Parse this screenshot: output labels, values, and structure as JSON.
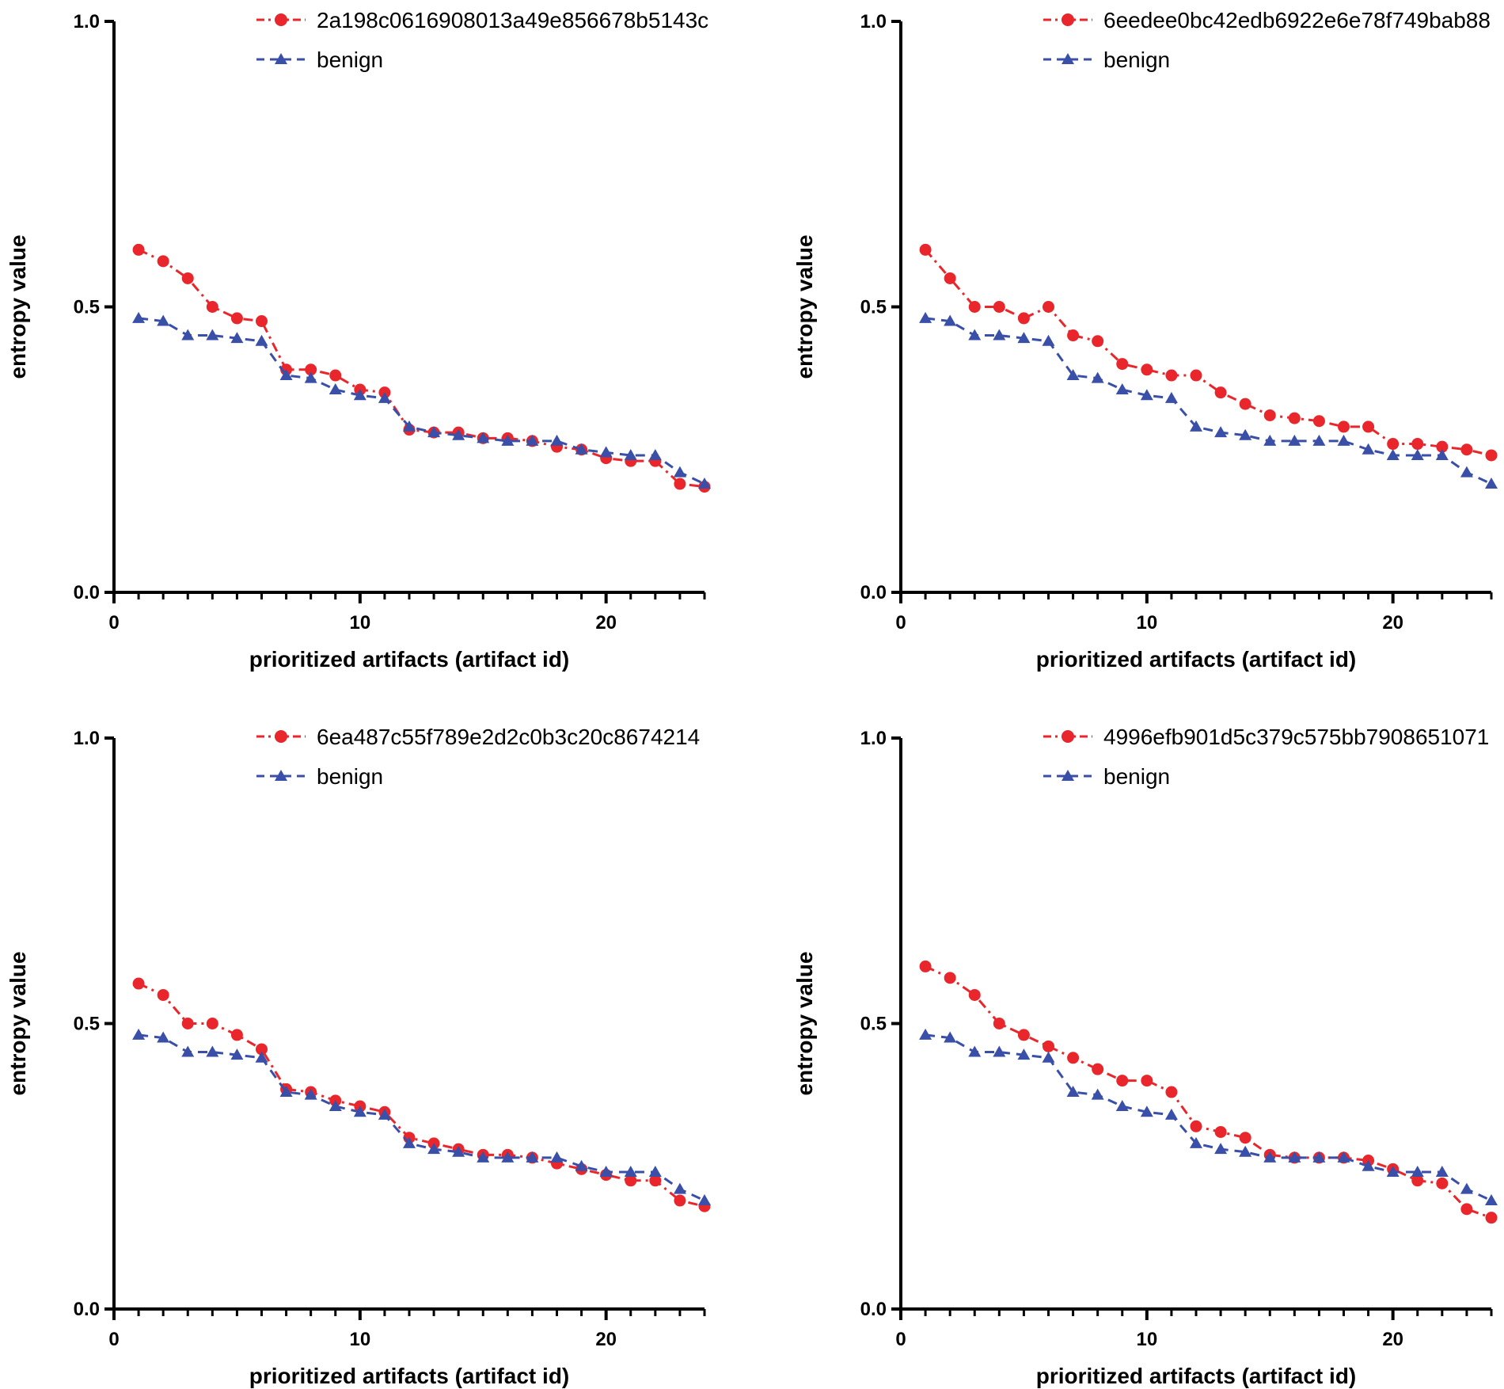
{
  "chart_data": [
    {
      "type": "line",
      "xlabel": "prioritized artifacts (artifact id)",
      "ylabel": "entropy value",
      "xlim": [
        0,
        24
      ],
      "ylim": [
        0,
        1
      ],
      "xticks": [
        0,
        10,
        20
      ],
      "yticks": [
        "0.0",
        "0.5",
        "1.0"
      ],
      "x": [
        1,
        2,
        3,
        4,
        5,
        6,
        7,
        8,
        9,
        10,
        11,
        12,
        13,
        14,
        15,
        16,
        17,
        18,
        19,
        20,
        21,
        22,
        23,
        24
      ],
      "series": [
        {
          "name": "2a198c0616908013a49e856678b5143c",
          "color": "#e8262b",
          "marker": "circle",
          "dash": "dashdot",
          "values": [
            0.6,
            0.58,
            0.55,
            0.5,
            0.48,
            0.475,
            0.39,
            0.39,
            0.38,
            0.355,
            0.35,
            0.285,
            0.28,
            0.28,
            0.27,
            0.27,
            0.265,
            0.255,
            0.25,
            0.235,
            0.23,
            0.23,
            0.19,
            0.185
          ]
        },
        {
          "name": "benign",
          "color": "#3a4fa8",
          "marker": "triangle",
          "dash": "dashed",
          "values": [
            0.48,
            0.475,
            0.45,
            0.45,
            0.445,
            0.44,
            0.38,
            0.375,
            0.355,
            0.345,
            0.34,
            0.29,
            0.28,
            0.275,
            0.27,
            0.265,
            0.265,
            0.265,
            0.25,
            0.245,
            0.24,
            0.24,
            0.21,
            0.19
          ]
        }
      ]
    },
    {
      "type": "line",
      "xlabel": "prioritized artifacts (artifact id)",
      "ylabel": "entropy value",
      "xlim": [
        0,
        24
      ],
      "ylim": [
        0,
        1
      ],
      "xticks": [
        0,
        10,
        20
      ],
      "yticks": [
        "0.0",
        "0.5",
        "1.0"
      ],
      "x": [
        1,
        2,
        3,
        4,
        5,
        6,
        7,
        8,
        9,
        10,
        11,
        12,
        13,
        14,
        15,
        16,
        17,
        18,
        19,
        20,
        21,
        22,
        23,
        24
      ],
      "series": [
        {
          "name": "6eedee0bc42edb6922e6e78f749bab88",
          "color": "#e8262b",
          "marker": "circle",
          "dash": "dashdot",
          "values": [
            0.6,
            0.55,
            0.5,
            0.5,
            0.48,
            0.5,
            0.45,
            0.44,
            0.4,
            0.39,
            0.38,
            0.38,
            0.35,
            0.33,
            0.31,
            0.305,
            0.3,
            0.29,
            0.29,
            0.26,
            0.26,
            0.255,
            0.25,
            0.24
          ]
        },
        {
          "name": "benign",
          "color": "#3a4fa8",
          "marker": "triangle",
          "dash": "dashed",
          "values": [
            0.48,
            0.475,
            0.45,
            0.45,
            0.445,
            0.44,
            0.38,
            0.375,
            0.355,
            0.345,
            0.34,
            0.29,
            0.28,
            0.275,
            0.265,
            0.265,
            0.265,
            0.265,
            0.25,
            0.24,
            0.24,
            0.24,
            0.21,
            0.19
          ]
        }
      ]
    },
    {
      "type": "line",
      "xlabel": "prioritized artifacts (artifact id)",
      "ylabel": "entropy value",
      "xlim": [
        0,
        24
      ],
      "ylim": [
        0,
        1
      ],
      "xticks": [
        0,
        10,
        20
      ],
      "yticks": [
        "0.0",
        "0.5",
        "1.0"
      ],
      "x": [
        1,
        2,
        3,
        4,
        5,
        6,
        7,
        8,
        9,
        10,
        11,
        12,
        13,
        14,
        15,
        16,
        17,
        18,
        19,
        20,
        21,
        22,
        23,
        24
      ],
      "series": [
        {
          "name": "6ea487c55f789e2d2c0b3c20c8674214",
          "color": "#e8262b",
          "marker": "circle",
          "dash": "dashdot",
          "values": [
            0.57,
            0.55,
            0.5,
            0.5,
            0.48,
            0.455,
            0.385,
            0.38,
            0.365,
            0.355,
            0.345,
            0.3,
            0.29,
            0.28,
            0.27,
            0.27,
            0.265,
            0.255,
            0.245,
            0.235,
            0.225,
            0.225,
            0.19,
            0.18
          ]
        },
        {
          "name": "benign",
          "color": "#3a4fa8",
          "marker": "triangle",
          "dash": "dashed",
          "values": [
            0.48,
            0.475,
            0.45,
            0.45,
            0.445,
            0.44,
            0.38,
            0.375,
            0.355,
            0.345,
            0.34,
            0.29,
            0.28,
            0.275,
            0.265,
            0.265,
            0.265,
            0.265,
            0.25,
            0.24,
            0.24,
            0.24,
            0.21,
            0.19
          ]
        }
      ]
    },
    {
      "type": "line",
      "xlabel": "prioritized artifacts (artifact id)",
      "ylabel": "entropy value",
      "xlim": [
        0,
        24
      ],
      "ylim": [
        0,
        1
      ],
      "xticks": [
        0,
        10,
        20
      ],
      "yticks": [
        "0.0",
        "0.5",
        "1.0"
      ],
      "x": [
        1,
        2,
        3,
        4,
        5,
        6,
        7,
        8,
        9,
        10,
        11,
        12,
        13,
        14,
        15,
        16,
        17,
        18,
        19,
        20,
        21,
        22,
        23,
        24
      ],
      "series": [
        {
          "name": "4996efb901d5c379c575bb7908651071",
          "color": "#e8262b",
          "marker": "circle",
          "dash": "dashdot",
          "values": [
            0.6,
            0.58,
            0.55,
            0.5,
            0.48,
            0.46,
            0.44,
            0.42,
            0.4,
            0.4,
            0.38,
            0.32,
            0.31,
            0.3,
            0.27,
            0.265,
            0.265,
            0.265,
            0.26,
            0.245,
            0.225,
            0.22,
            0.175,
            0.16
          ]
        },
        {
          "name": "benign",
          "color": "#3a4fa8",
          "marker": "triangle",
          "dash": "dashed",
          "values": [
            0.48,
            0.475,
            0.45,
            0.45,
            0.445,
            0.44,
            0.38,
            0.375,
            0.355,
            0.345,
            0.34,
            0.29,
            0.28,
            0.275,
            0.265,
            0.265,
            0.265,
            0.265,
            0.25,
            0.24,
            0.24,
            0.24,
            0.21,
            0.19
          ]
        }
      ]
    }
  ]
}
